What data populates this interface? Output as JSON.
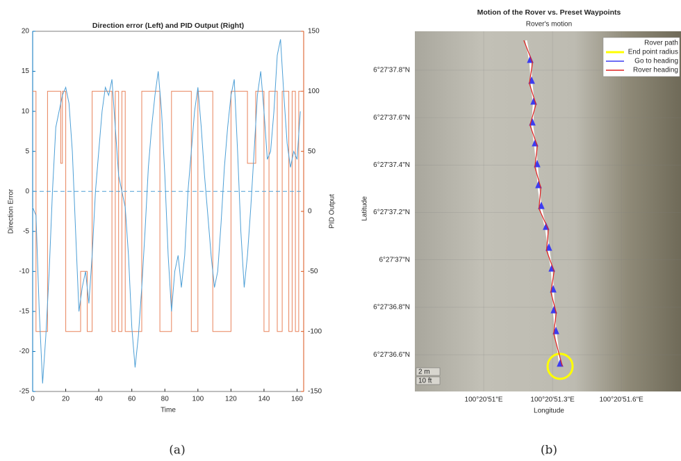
{
  "chart_data": [
    {
      "type": "dual-line",
      "title": "Direction error (Left) and PID Output (Right)",
      "xlabel": "Time",
      "ylabel": "Direction Error",
      "y2label": "PID Output",
      "caption": "(a)",
      "xlim": [
        0,
        164
      ],
      "xticks": [
        0,
        20,
        40,
        60,
        80,
        100,
        120,
        140,
        160
      ],
      "ylim": [
        -25,
        20
      ],
      "yticks": [
        -25,
        -20,
        -15,
        -10,
        -5,
        0,
        5,
        10,
        15,
        20
      ],
      "y2lim": [
        -150,
        150
      ],
      "y2ticks": [
        -150,
        -100,
        -50,
        0,
        50,
        100,
        150
      ],
      "ycolor": "#0072bd",
      "y2color": "#d95319",
      "hline": 0,
      "series": [
        {
          "name": "Direction Error",
          "color": "#4d9fd6",
          "axis": "y",
          "x": [
            0,
            2,
            4,
            6,
            8,
            10,
            12,
            14,
            16,
            18,
            20,
            22,
            24,
            26,
            28,
            30,
            32,
            34,
            36,
            38,
            40,
            42,
            44,
            46,
            48,
            50,
            52,
            54,
            56,
            58,
            60,
            62,
            64,
            66,
            68,
            70,
            72,
            74,
            76,
            78,
            80,
            82,
            84,
            86,
            88,
            90,
            92,
            94,
            96,
            98,
            100,
            102,
            104,
            106,
            108,
            110,
            112,
            114,
            116,
            118,
            120,
            122,
            124,
            126,
            128,
            130,
            132,
            134,
            136,
            138,
            140,
            142,
            144,
            146,
            148,
            150,
            152,
            154,
            156,
            158,
            160,
            162
          ],
          "values": [
            -2,
            -3,
            -15,
            -24,
            -18,
            -10,
            0,
            8,
            10,
            12,
            13,
            11,
            5,
            -5,
            -15,
            -12,
            -10,
            -14,
            -8,
            0,
            5,
            10,
            13,
            12,
            14,
            8,
            2,
            0,
            -2,
            -8,
            -17,
            -22,
            -18,
            -12,
            -5,
            3,
            8,
            12,
            15,
            10,
            2,
            -8,
            -15,
            -10,
            -8,
            -12,
            -8,
            0,
            5,
            10,
            13,
            8,
            2,
            -3,
            -8,
            -12,
            -10,
            -4,
            3,
            8,
            12,
            14,
            5,
            -5,
            -12,
            -8,
            -2,
            5,
            12,
            15,
            10,
            4,
            5,
            10,
            17,
            19,
            12,
            6,
            3,
            5,
            4,
            10
          ]
        },
        {
          "name": "PID Output",
          "color": "#e8825a",
          "axis": "y2",
          "x": [
            0,
            2,
            2,
            9,
            9,
            17,
            17,
            18,
            18,
            20,
            20,
            29,
            29,
            33,
            33,
            36,
            36,
            48,
            48,
            50,
            50,
            52,
            52,
            54,
            54,
            56,
            56,
            66,
            66,
            77,
            77,
            84,
            84,
            96,
            96,
            100,
            100,
            109,
            109,
            120,
            120,
            130,
            130,
            135,
            135,
            140,
            140,
            143,
            143,
            148,
            148,
            151,
            151,
            155,
            155,
            157,
            157,
            159,
            159,
            161,
            161,
            164
          ],
          "values": [
            100,
            100,
            -100,
            -100,
            100,
            100,
            40,
            40,
            100,
            100,
            -100,
            -100,
            -50,
            -50,
            -100,
            -100,
            100,
            100,
            -100,
            -100,
            100,
            100,
            -100,
            -100,
            100,
            100,
            -100,
            -100,
            100,
            100,
            -100,
            -100,
            100,
            100,
            -100,
            -100,
            100,
            100,
            -100,
            -100,
            100,
            100,
            40,
            40,
            100,
            100,
            -100,
            -100,
            100,
            100,
            -100,
            -100,
            100,
            100,
            -100,
            -100,
            100,
            100,
            -100,
            -100,
            100,
            100
          ]
        }
      ]
    },
    {
      "type": "map-path",
      "title": "Motion of the Rover vs. Preset Waypoints",
      "subtitle": "Rover's motion",
      "xlabel": "Longitude",
      "ylabel": "Latitude",
      "caption": "(b)",
      "scale_labels": [
        "2 m",
        "10 ft"
      ],
      "xlim": [
        50.7,
        51.86
      ],
      "xticks": [
        {
          "value": 51.0,
          "label": "100°20'51\"E"
        },
        {
          "value": 51.3,
          "label": "100°20'51.3\"E"
        },
        {
          "value": 51.6,
          "label": "100°20'51.6\"E"
        }
      ],
      "ylim": [
        36.445,
        37.964
      ],
      "yticks": [
        {
          "value": 36.6,
          "label": "6°27'36.6\"N"
        },
        {
          "value": 36.8,
          "label": "6°27'36.8\"N"
        },
        {
          "value": 37.0,
          "label": "6°27'37\"N"
        },
        {
          "value": 37.2,
          "label": "6°27'37.2\"N"
        },
        {
          "value": 37.4,
          "label": "6°27'37.4\"N"
        },
        {
          "value": 37.6,
          "label": "6°27'37.6\"N"
        },
        {
          "value": 37.8,
          "label": "6°27'37.8\"N"
        }
      ],
      "series": [
        {
          "name": "Rover path",
          "color": "#ffffff",
          "marker": "none",
          "x": [
            51.185,
            51.203,
            51.209,
            51.218,
            51.212,
            51.224,
            51.233,
            51.239,
            51.251,
            51.272,
            51.284,
            51.297,
            51.303,
            51.306,
            51.315,
            51.333
          ],
          "values": [
            37.926,
            37.832,
            37.744,
            37.656,
            37.568,
            37.48,
            37.392,
            37.304,
            37.216,
            37.128,
            37.04,
            36.952,
            36.864,
            36.776,
            36.688,
            36.551
          ]
        },
        {
          "name": "End point radius",
          "color": "#ffff00",
          "marker": "circle",
          "x": [
            51.333
          ],
          "values": [
            36.551
          ]
        },
        {
          "name": "Go to heading",
          "color": "#3c3cf0",
          "marker": "triangle",
          "x": [
            51.203,
            51.209,
            51.218,
            51.212,
            51.224,
            51.233,
            51.239,
            51.251,
            51.272,
            51.284,
            51.297,
            51.303,
            51.306,
            51.315,
            51.333
          ],
          "values": [
            37.832,
            37.744,
            37.656,
            37.568,
            37.48,
            37.392,
            37.304,
            37.216,
            37.128,
            37.04,
            36.952,
            36.864,
            36.776,
            36.688,
            36.551
          ]
        },
        {
          "name": "Rover heading",
          "color": "#e02020",
          "marker": "none",
          "x": [
            51.175,
            51.213,
            51.199,
            51.228,
            51.202,
            51.234,
            51.223,
            51.249,
            51.241,
            51.282,
            51.274,
            51.307,
            51.293,
            51.316,
            51.305,
            51.343
          ],
          "values": [
            37.926,
            37.832,
            37.744,
            37.656,
            37.568,
            37.48,
            37.392,
            37.304,
            37.216,
            37.128,
            37.04,
            36.952,
            36.864,
            36.776,
            36.688,
            36.551
          ]
        }
      ]
    }
  ]
}
